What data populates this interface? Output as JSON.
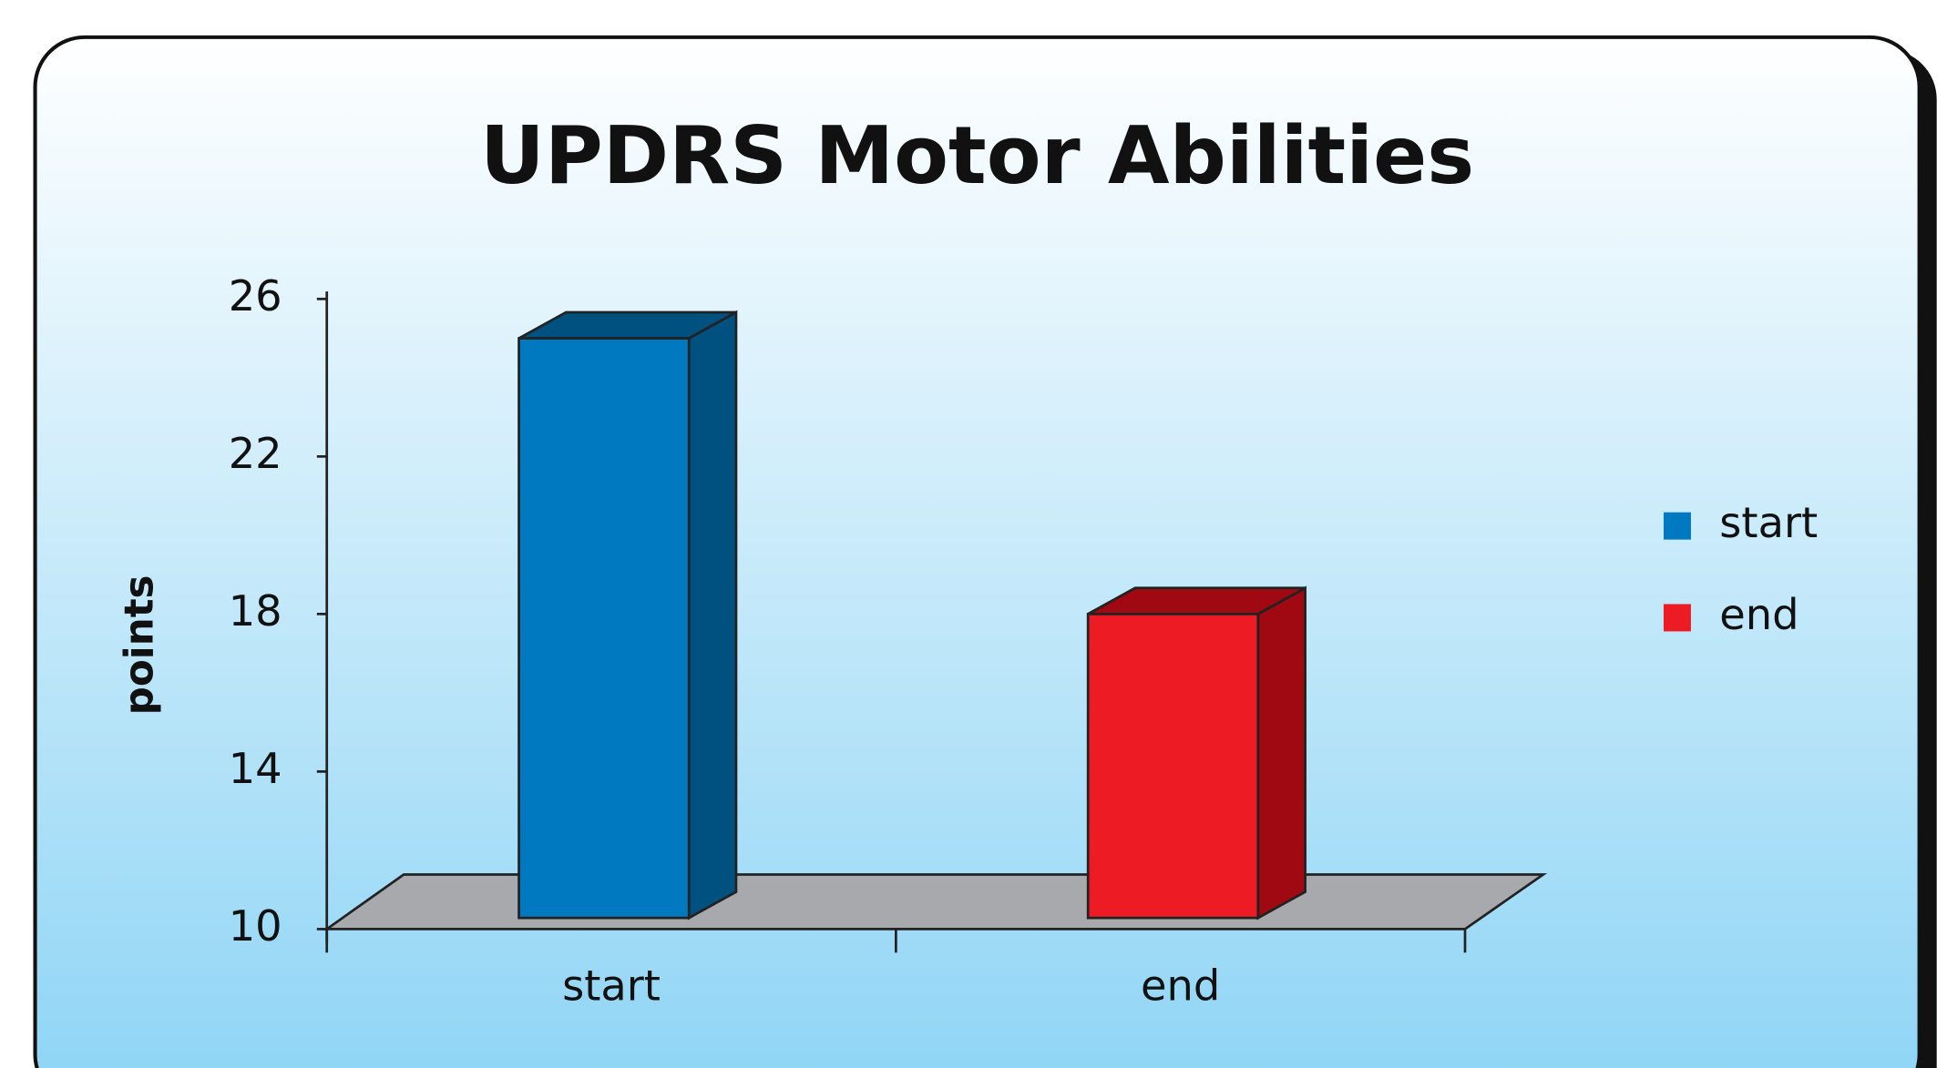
{
  "chart_data": {
    "type": "bar3d",
    "title": "UPDRS Motor Abilities",
    "y_label": "points",
    "categories": [
      "start",
      "end"
    ],
    "values": [
      25,
      18
    ],
    "colors": [
      "#0079c1",
      "#ed1c24"
    ],
    "side_colors": [
      "#005080",
      "#a00812"
    ],
    "ylim": [
      10,
      26
    ],
    "yticks": [
      10,
      14,
      18,
      22,
      26
    ],
    "legend": "right"
  }
}
